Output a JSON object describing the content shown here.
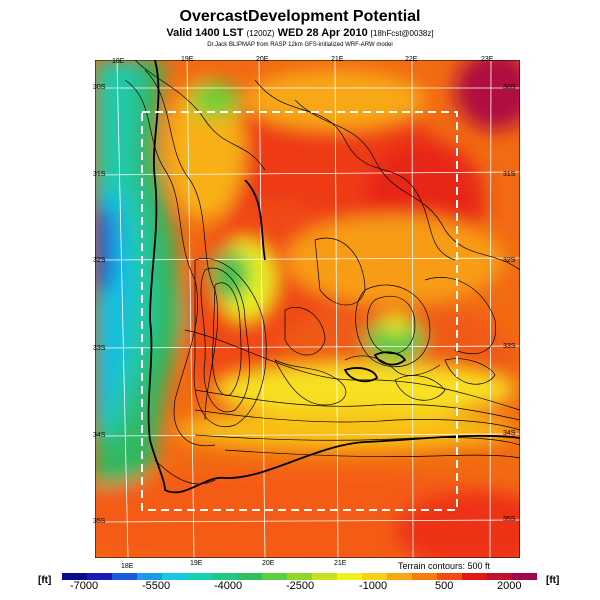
{
  "title": "OvercastDevelopment Potential",
  "subtitle": {
    "main": "Valid 1400 LST",
    "utc": "(1200Z)",
    "date": "WED 28 Apr 2010",
    "fcst": "[18hFcst@0038z]"
  },
  "credit": "Dr.Jack BLIPMAP from RASP 12km GFS-initialized WRF-ARW model",
  "longitude_labels_top": [
    "18E",
    "19E",
    "20E",
    "21E",
    "22E",
    "23E"
  ],
  "longitude_labels_bottom": [
    "18E",
    "19E",
    "20E",
    "21E"
  ],
  "latitude_labels": [
    "30S",
    "31S",
    "32S",
    "33S",
    "34S",
    "35S"
  ],
  "terrain_note": "Terrain contours: 500 ft",
  "colorbar": {
    "unit_left": "[ft]",
    "unit_right": "[ft]",
    "tick_labels": [
      "-7000",
      "-5500",
      "-4000",
      "-2500",
      "-1000",
      "500",
      "2000"
    ],
    "colors": [
      "#0a0a8c",
      "#1a1ab8",
      "#1a5ad8",
      "#1a9ae8",
      "#18c8e0",
      "#18d0b4",
      "#20c888",
      "#30c060",
      "#5ad040",
      "#90d828",
      "#c8e020",
      "#f0f020",
      "#f8d018",
      "#f8a814",
      "#f87c10",
      "#f04c10",
      "#e01818",
      "#c01030",
      "#a00850"
    ]
  },
  "colors": {
    "frame": "#000000",
    "dashed_box": "#ffffff",
    "grid": "#ffffff"
  }
}
